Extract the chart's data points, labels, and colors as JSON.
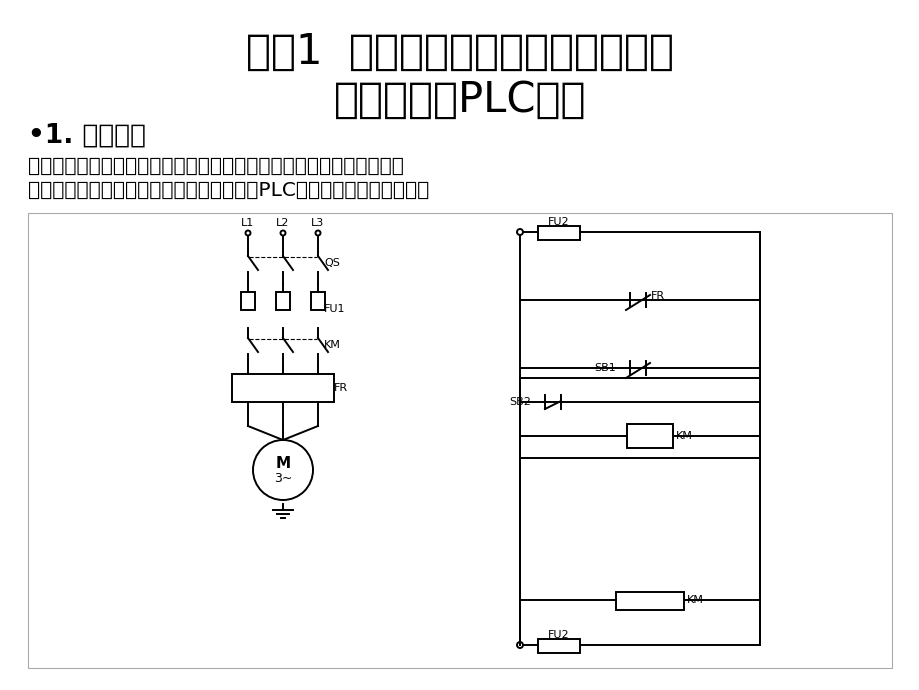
{
  "title_line1": "任务1  单向起动、停止的电动机电气",
  "title_line2": "控制线路的PLC改造",
  "subtitle": "•1. 工作任务",
  "body_text_line1": "采用继电接触控制系统实现电动机单向起动、停止电气控制。如下图所",
  "body_text_line2": "示。请分析该控制线路图的控制功能，并用PLC对其控制电路进行改造。",
  "bg_color": "#ffffff",
  "text_color": "#000000",
  "title_fontsize": 30,
  "subtitle_fontsize": 19,
  "body_fontsize": 14.5
}
